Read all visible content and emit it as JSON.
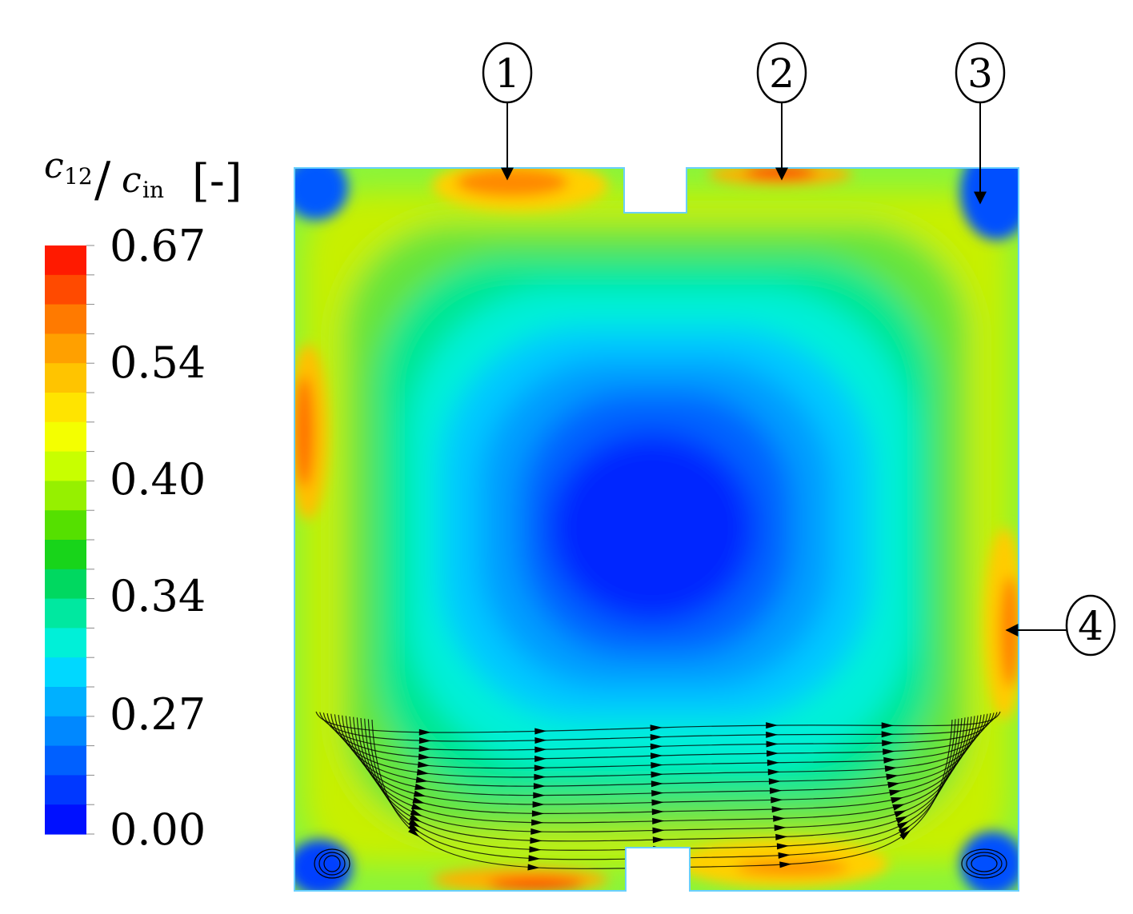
{
  "colorbar": {
    "title_main": "c",
    "title_sub1": "12",
    "title_slash": "/",
    "title_main2": "c",
    "title_sub2": "in",
    "title_unit": "[-]",
    "ticks": [
      "0.67",
      "0.54",
      "0.40",
      "0.34",
      "0.27",
      "0.00"
    ],
    "colors": [
      "#ff1a00",
      "#ff4a00",
      "#ff7a00",
      "#ffa000",
      "#ffc400",
      "#ffe400",
      "#f4ff00",
      "#c8ff00",
      "#96f000",
      "#55e000",
      "#18d41a",
      "#00d860",
      "#00e8a0",
      "#00f0d8",
      "#00d8ff",
      "#00b0ff",
      "#0088ff",
      "#0060ff",
      "#0038ff",
      "#0010ff"
    ]
  },
  "markers": [
    {
      "id": "1"
    },
    {
      "id": "2"
    },
    {
      "id": "3"
    },
    {
      "id": "4"
    }
  ],
  "field": {
    "min_value": 0.0,
    "max_value": 0.67,
    "hotspot_labels": [
      "1",
      "2",
      "3",
      "4"
    ]
  }
}
